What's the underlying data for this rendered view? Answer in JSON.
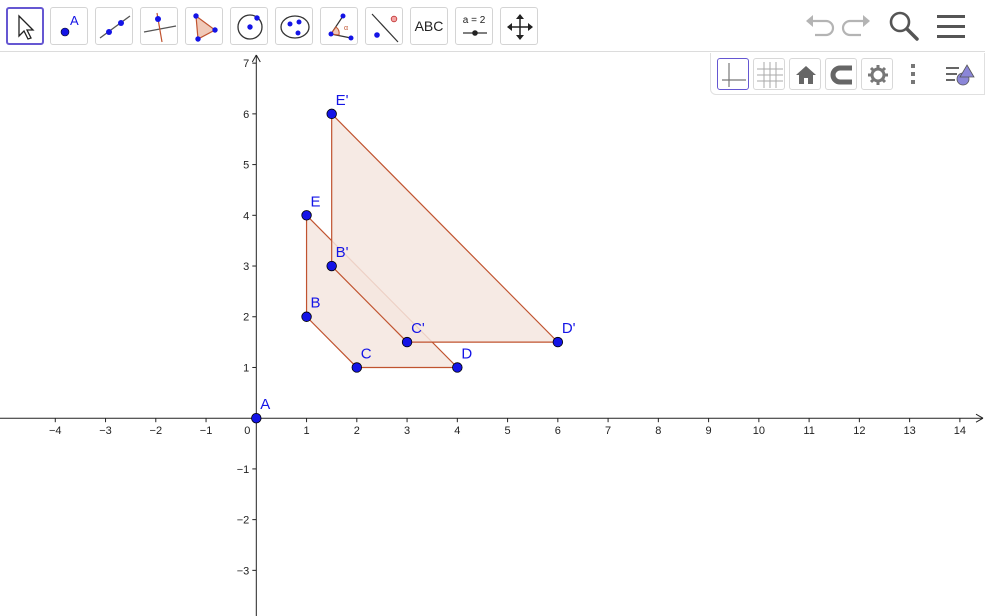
{
  "toolbar": {
    "tools": [
      {
        "name": "move-tool",
        "label": ""
      },
      {
        "name": "point-tool",
        "label": "A"
      },
      {
        "name": "line-tool",
        "label": ""
      },
      {
        "name": "perpendicular-line-tool",
        "label": ""
      },
      {
        "name": "polygon-tool",
        "label": ""
      },
      {
        "name": "circle-with-center-tool",
        "label": ""
      },
      {
        "name": "ellipse-tool",
        "label": ""
      },
      {
        "name": "angle-tool",
        "label": ""
      },
      {
        "name": "reflect-about-line-tool",
        "label": ""
      },
      {
        "name": "text-tool",
        "label": "ABC"
      },
      {
        "name": "slider-tool",
        "label": "a = 2"
      },
      {
        "name": "move-graphics-view-tool",
        "label": ""
      }
    ],
    "right_icons": [
      "undo-icon",
      "redo-icon",
      "search-icon",
      "menu-icon"
    ]
  },
  "style_bar": {
    "buttons": [
      "axes-toggle-icon",
      "grid-toggle-icon",
      "home-icon",
      "snap-magnet-icon",
      "settings-gear-icon",
      "more-vertical-icon",
      "algebra-graphics-toggle-icon"
    ]
  },
  "graph": {
    "x_range": [
      -5.1,
      14.5
    ],
    "y_range": [
      -3.9,
      7.2
    ],
    "x_ticks": [
      "−4",
      "−3",
      "−2",
      "−1",
      "0",
      "1",
      "2",
      "3",
      "4",
      "5",
      "6",
      "7",
      "8",
      "9",
      "10",
      "11",
      "12",
      "13",
      "14"
    ],
    "y_ticks": [
      "−3",
      "−2",
      "−1",
      "1",
      "2",
      "3",
      "4",
      "5",
      "6",
      "7"
    ],
    "colors": {
      "point": "#1414e6",
      "polygon_stroke": "#c0532f",
      "polygon_fill": "#f4e6df",
      "label": "#1414e6",
      "axis": "#222222"
    },
    "polygons": [
      {
        "name": "polygon-bcde",
        "vertices": [
          [
            1,
            2
          ],
          [
            2,
            1
          ],
          [
            4,
            1
          ],
          [
            1,
            4
          ]
        ]
      },
      {
        "name": "polygon-bcde-prime",
        "vertices": [
          [
            1.5,
            3
          ],
          [
            3,
            1.5
          ],
          [
            6,
            1.5
          ],
          [
            1.5,
            6
          ]
        ]
      }
    ],
    "points": [
      {
        "label": "A",
        "x": 0,
        "y": 0
      },
      {
        "label": "B",
        "x": 1,
        "y": 2
      },
      {
        "label": "C",
        "x": 2,
        "y": 1
      },
      {
        "label": "D",
        "x": 4,
        "y": 1
      },
      {
        "label": "E",
        "x": 1,
        "y": 4
      },
      {
        "label": "B'",
        "x": 1.5,
        "y": 3
      },
      {
        "label": "C'",
        "x": 3,
        "y": 1.5
      },
      {
        "label": "D'",
        "x": 6,
        "y": 1.5
      },
      {
        "label": "E'",
        "x": 1.5,
        "y": 6
      }
    ]
  }
}
